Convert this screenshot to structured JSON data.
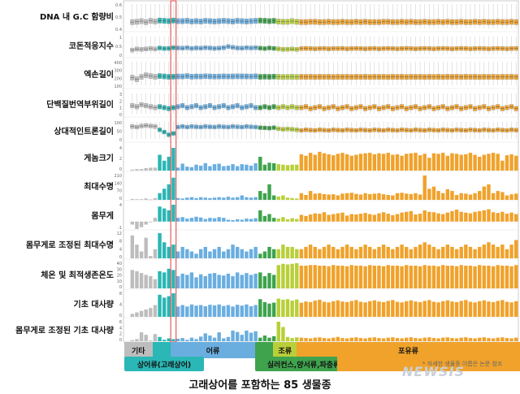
{
  "chart_data": {
    "type": "bar",
    "n_species": 85,
    "caption": "고래상어를 포함하는 85 생물종",
    "footnote": "* 자세한 생물종 이름은 논문 참조",
    "watermark": "NEWSIS",
    "groups": [
      {
        "name": "기타",
        "start": 0,
        "count": 6,
        "color": "#bdbdbd"
      },
      {
        "name": "상어류(고래상어)",
        "start": 6,
        "count": 4,
        "color": "#2ab7b5"
      },
      {
        "name": "어류",
        "start": 10,
        "count": 18,
        "color": "#6aaee0"
      },
      {
        "name": "실러컨스,양서류,파충류",
        "start": 28,
        "count": 4,
        "color": "#3fa34d"
      },
      {
        "name": "조류",
        "start": 32,
        "count": 5,
        "color": "#b8cf3a"
      },
      {
        "name": "포유류",
        "start": 37,
        "count": 48,
        "color": "#f0a22b"
      }
    ],
    "tracks": [
      {
        "label": "DNA 내 G.C 함량비",
        "kind": "box",
        "ticks": [
          "0.6",
          "0.5",
          "0.4"
        ],
        "values": [
          0.47,
          0.46,
          0.44,
          0.47,
          0.43,
          0.45,
          0.42,
          0.43,
          0.44,
          0.42,
          0.44,
          0.44,
          0.43,
          0.45,
          0.44,
          0.45,
          0.43,
          0.44,
          0.45,
          0.44,
          0.43,
          0.44,
          0.45,
          0.43,
          0.44,
          0.45,
          0.44,
          0.43,
          0.42,
          0.43,
          0.44,
          0.43,
          0.45,
          0.46,
          0.46,
          0.44,
          0.46,
          0.47,
          0.47,
          0.46,
          0.46,
          0.47,
          0.47,
          0.46,
          0.47,
          0.47,
          0.46,
          0.47,
          0.47,
          0.46,
          0.47,
          0.46,
          0.47,
          0.47,
          0.47,
          0.46,
          0.46,
          0.47,
          0.47,
          0.46,
          0.47,
          0.46,
          0.47,
          0.47,
          0.46,
          0.47,
          0.47,
          0.46,
          0.47,
          0.46,
          0.47,
          0.47,
          0.46,
          0.47,
          0.47,
          0.46,
          0.47,
          0.46,
          0.47,
          0.47,
          0.46,
          0.47,
          0.47,
          0.46,
          0.47
        ]
      },
      {
        "label": "코돈적응지수",
        "kind": "box",
        "ticks": [
          "1",
          "0.5",
          "0"
        ],
        "values": [
          0.55,
          0.5,
          0.52,
          0.5,
          0.48,
          0.5,
          0.45,
          0.48,
          0.47,
          0.44,
          0.45,
          0.46,
          0.44,
          0.47,
          0.45,
          0.46,
          0.44,
          0.45,
          0.47,
          0.46,
          0.44,
          0.38,
          0.42,
          0.45,
          0.46,
          0.44,
          0.45,
          0.44,
          0.46,
          0.48,
          0.45,
          0.47,
          0.49,
          0.52,
          0.51,
          0.5,
          0.52,
          0.48,
          0.47,
          0.48,
          0.49,
          0.48,
          0.47,
          0.49,
          0.48,
          0.48,
          0.47,
          0.49,
          0.48,
          0.47,
          0.48,
          0.49,
          0.48,
          0.47,
          0.49,
          0.48,
          0.47,
          0.48,
          0.49,
          0.48,
          0.47,
          0.48,
          0.49,
          0.48,
          0.47,
          0.48,
          0.49,
          0.48,
          0.47,
          0.48,
          0.49,
          0.48,
          0.47,
          0.48,
          0.49,
          0.48,
          0.47,
          0.48,
          0.49,
          0.48,
          0.47,
          0.48,
          0.49,
          0.48,
          0.47
        ]
      },
      {
        "label": "엑손길이",
        "kind": "box",
        "ticks": [
          "400",
          "300",
          "200",
          "100"
        ],
        "values": [
          160,
          180,
          150,
          130,
          140,
          150,
          140,
          145,
          150,
          148,
          145,
          146,
          140,
          148,
          145,
          146,
          142,
          145,
          147,
          146,
          144,
          146,
          145,
          143,
          144,
          145,
          146,
          143,
          150,
          148,
          150,
          147,
          150,
          152,
          151,
          150,
          152,
          150,
          151,
          150,
          152,
          150,
          151,
          150,
          152,
          150,
          151,
          150,
          152,
          150,
          151,
          150,
          152,
          150,
          151,
          150,
          152,
          150,
          151,
          150,
          152,
          150,
          151,
          150,
          152,
          150,
          151,
          150,
          152,
          150,
          151,
          150,
          152,
          150,
          151,
          150,
          152,
          150,
          151,
          150,
          152,
          150,
          151,
          150,
          152
        ]
      },
      {
        "label": "단백질번역부위길이",
        "kind": "box",
        "ticks": [
          "3",
          "2",
          "1",
          "0"
        ],
        "values": [
          1.0,
          1.1,
          0.9,
          1.0,
          1.1,
          1.2,
          1.1,
          1.2,
          1.3,
          1.2,
          1.1,
          1.0,
          1.2,
          1.1,
          1.0,
          1.2,
          1.1,
          1.0,
          1.2,
          1.1,
          1.0,
          1.2,
          1.1,
          1.0,
          1.2,
          1.1,
          1.0,
          1.2,
          1.2,
          1.1,
          1.2,
          1.1,
          1.2,
          1.1,
          1.2,
          1.1,
          1.2,
          1.2,
          1.1,
          1.3,
          1.2,
          1.1,
          1.3,
          1.2,
          1.1,
          1.3,
          1.2,
          1.1,
          1.3,
          1.2,
          1.1,
          1.3,
          1.2,
          1.1,
          1.3,
          1.2,
          1.1,
          1.3,
          1.2,
          1.1,
          1.3,
          1.2,
          1.1,
          1.3,
          1.2,
          1.1,
          1.3,
          1.2,
          1.1,
          1.3,
          1.2,
          1.1,
          1.3,
          1.2,
          1.1,
          1.3,
          1.2,
          1.1,
          1.3,
          1.2,
          1.1,
          1.3,
          1.2,
          1.1,
          1.3
        ]
      },
      {
        "label": "상대적인트론길이",
        "kind": "box",
        "ticks": [
          "100",
          "50",
          "0"
        ],
        "values": [
          10,
          12,
          8,
          6,
          8,
          10,
          22,
          30,
          40,
          35,
          12,
          10,
          12,
          10,
          11,
          12,
          10,
          11,
          12,
          10,
          11,
          12,
          10,
          11,
          12,
          10,
          11,
          12,
          14,
          15,
          16,
          14,
          18,
          20,
          19,
          20,
          22,
          24,
          22,
          23,
          24,
          22,
          23,
          24,
          22,
          23,
          24,
          22,
          23,
          24,
          22,
          23,
          24,
          22,
          23,
          24,
          22,
          23,
          24,
          22,
          23,
          24,
          22,
          23,
          24,
          22,
          23,
          24,
          22,
          23,
          24,
          22,
          23,
          24,
          22,
          23,
          24,
          22,
          23,
          24,
          22,
          23,
          24,
          22,
          23
        ]
      },
      {
        "label": "게놈크기",
        "kind": "bar",
        "ticks": [
          "4",
          "2",
          "0"
        ],
        "values": [
          0.2,
          0.3,
          0.3,
          0.5,
          0.6,
          0.6,
          3.2,
          2.0,
          2.8,
          4.6,
          0.6,
          1.4,
          0.8,
          0.7,
          1.2,
          1.0,
          1.5,
          0.9,
          1.3,
          1.4,
          0.9,
          1.0,
          1.3,
          0.9,
          1.3,
          1.2,
          1.0,
          1.5,
          2.8,
          1.2,
          1.6,
          1.5,
          1.3,
          1.2,
          1.1,
          1.2,
          1.2,
          3.3,
          3.0,
          3.6,
          3.2,
          3.8,
          3.5,
          3.3,
          3.1,
          3.4,
          3.6,
          3.3,
          3.0,
          3.2,
          3.4,
          3.5,
          3.6,
          3.3,
          3.5,
          3.4,
          3.6,
          3.2,
          3.3,
          3.0,
          3.4,
          3.5,
          3.6,
          3.1,
          3.4,
          2.6,
          3.5,
          3.4,
          3.6,
          3.0,
          3.5,
          3.4,
          3.2,
          3.3,
          3.6,
          3.2,
          2.8,
          3.2,
          3.4,
          3.6,
          3.4,
          2.0,
          3.1,
          3.3,
          3.0
        ]
      },
      {
        "label": "최대수명",
        "kind": "bar",
        "ticks": [
          "210",
          "140",
          "70",
          "0"
        ],
        "values": [
          4,
          3,
          3,
          6,
          2,
          8,
          30,
          50,
          70,
          100,
          8,
          6,
          10,
          12,
          8,
          12,
          10,
          8,
          10,
          12,
          10,
          14,
          10,
          12,
          20,
          12,
          10,
          12,
          40,
          30,
          70,
          20,
          15,
          20,
          10,
          8,
          6,
          30,
          22,
          40,
          28,
          30,
          26,
          24,
          25,
          20,
          28,
          30,
          32,
          27,
          24,
          30,
          26,
          28,
          30,
          25,
          22,
          20,
          30,
          32,
          28,
          26,
          30,
          24,
          110,
          50,
          60,
          40,
          30,
          48,
          40,
          22,
          30,
          28,
          24,
          30,
          40,
          60,
          70,
          30,
          40,
          35,
          20,
          25,
          28
        ]
      },
      {
        "label": "몸무게",
        "kind": "bar",
        "ticks": [
          "4",
          "-1"
        ],
        "values": [
          -0.8,
          -2.0,
          -1.5,
          -0.8,
          -0.2,
          1.0,
          4.0,
          3.5,
          3.0,
          4.5,
          1.0,
          1.2,
          0.8,
          1.0,
          1.3,
          1.1,
          0.7,
          1.0,
          0.9,
          1.2,
          1.0,
          0.5,
          0.4,
          0.6,
          0.5,
          0.8,
          0.7,
          0.9,
          3.0,
          1.5,
          2.0,
          1.0,
          0.8,
          1.2,
          0.6,
          0.9,
          0.7,
          1.8,
          1.5,
          1.9,
          2.2,
          2.1,
          2.5,
          1.8,
          2.0,
          2.2,
          2.4,
          1.6,
          2.0,
          1.9,
          2.1,
          2.3,
          2.0,
          1.8,
          2.2,
          2.5,
          2.1,
          1.7,
          2.0,
          2.4,
          2.6,
          2.8,
          1.9,
          2.1,
          3.0,
          2.6,
          2.5,
          2.2,
          2.0,
          2.4,
          2.8,
          3.2,
          2.6,
          2.4,
          2.2,
          2.6,
          2.8,
          3.0,
          3.3,
          2.5,
          2.3,
          2.6,
          2.1,
          2.4,
          2.0
        ]
      },
      {
        "label": "몸무게로 조정된 최대수명",
        "kind": "bar",
        "ticks": [
          "12",
          "8",
          "4",
          "0"
        ],
        "values": [
          10,
          6,
          3,
          9,
          1,
          4,
          11,
          7,
          5,
          6,
          3,
          5,
          4,
          3,
          2,
          4,
          5,
          3,
          4,
          5,
          3,
          4,
          6,
          5,
          4,
          3,
          4,
          5,
          2,
          3,
          5,
          4,
          4,
          6,
          5,
          5,
          4,
          4,
          5,
          6,
          5,
          4,
          5,
          6,
          5,
          4,
          5,
          6,
          5,
          4,
          5,
          6,
          5,
          4,
          5,
          6,
          5,
          4,
          5,
          6,
          5,
          4,
          5,
          6,
          7,
          6,
          5,
          4,
          5,
          6,
          5,
          4,
          5,
          6,
          5,
          4,
          5,
          6,
          7,
          6,
          5,
          6,
          4,
          6,
          8
        ]
      },
      {
        "label": "체온 및 최적생존온도",
        "kind": "bar",
        "ticks": [
          "40",
          "30",
          "20",
          "10",
          "0"
        ],
        "values": [
          30,
          28,
          25,
          22,
          20,
          15,
          28,
          26,
          32,
          30,
          20,
          24,
          22,
          26,
          18,
          23,
          20,
          24,
          25,
          22,
          21,
          24,
          20,
          26,
          22,
          25,
          22,
          24,
          26,
          20,
          25,
          22,
          38,
          40,
          39,
          40,
          41,
          37,
          37,
          38,
          38,
          37,
          37,
          36,
          38,
          37,
          37,
          36,
          38,
          37,
          37,
          36,
          38,
          37,
          37,
          36,
          38,
          37,
          37,
          36,
          38,
          37,
          37,
          36,
          38,
          37,
          37,
          36,
          38,
          37,
          37,
          36,
          38,
          37,
          37,
          36,
          38,
          37,
          37,
          36,
          38,
          37,
          37,
          36,
          38
        ]
      },
      {
        "label": "기초 대사량",
        "kind": "bar",
        "ticks": [
          "8",
          "4",
          "0"
        ],
        "values": [
          1.0,
          1.5,
          2.0,
          2.5,
          3.0,
          4.0,
          7.5,
          6.5,
          7.0,
          8.0,
          3.5,
          4.0,
          3.5,
          4.2,
          3.8,
          4.0,
          3.6,
          4.1,
          3.9,
          4.2,
          3.7,
          4.0,
          3.5,
          4.1,
          3.8,
          4.2,
          3.6,
          4.0,
          6.0,
          5.0,
          4.5,
          4.8,
          6.2,
          5.8,
          6.0,
          5.5,
          5.9,
          4.8,
          5.2,
          5.0,
          5.5,
          5.8,
          5.1,
          4.9,
          5.3,
          5.6,
          5.2,
          5.0,
          5.4,
          5.7,
          5.1,
          4.9,
          5.3,
          5.6,
          5.2,
          5.0,
          5.4,
          5.7,
          5.1,
          4.9,
          5.3,
          5.6,
          5.2,
          5.0,
          5.4,
          5.7,
          5.1,
          4.9,
          5.3,
          5.6,
          5.2,
          5.0,
          5.4,
          5.7,
          5.1,
          4.9,
          5.3,
          5.6,
          5.2,
          5.0,
          5.4,
          5.7,
          5.1,
          4.9,
          5.3
        ]
      },
      {
        "label": "몸무게로 조정된 기초 대사량",
        "kind": "bar",
        "ticks": [
          "6",
          "4",
          "2",
          "0"
        ],
        "values": [
          0.3,
          0.6,
          2.5,
          1.8,
          0.2,
          2.0,
          1.2,
          0.4,
          0.8,
          0.6,
          0.7,
          0.9,
          0.4,
          1.0,
          0.6,
          1.3,
          2.2,
          1.6,
          1.0,
          2.5,
          0.8,
          1.2,
          3.0,
          2.6,
          1.8,
          3.0,
          2.4,
          2.8,
          1.0,
          1.6,
          1.0,
          1.4,
          5.5,
          4.0,
          1.2,
          0.9,
          1.1,
          1.0,
          0.9,
          0.8,
          1.0,
          1.1,
          0.9,
          0.8,
          1.0,
          1.2,
          0.9,
          0.8,
          1.0,
          1.1,
          0.9,
          0.8,
          1.0,
          1.1,
          0.9,
          0.8,
          1.0,
          1.1,
          0.9,
          0.8,
          1.0,
          1.1,
          0.9,
          0.8,
          1.0,
          1.1,
          0.9,
          0.8,
          1.0,
          1.1,
          0.9,
          0.8,
          1.0,
          1.1,
          0.9,
          0.8,
          1.0,
          1.1,
          0.9,
          0.8,
          1.0,
          1.1,
          0.9,
          0.8,
          1.0
        ]
      }
    ],
    "highlight_species_index": 9
  }
}
